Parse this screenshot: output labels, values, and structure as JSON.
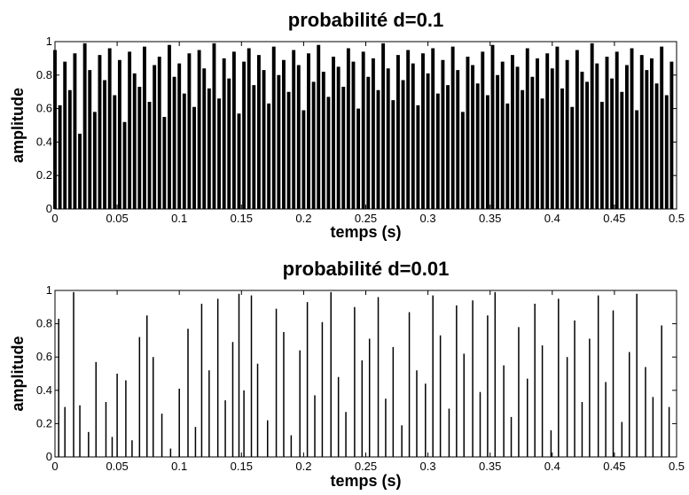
{
  "chart_data": [
    {
      "type": "stem",
      "title": "probabilité d=0.1",
      "xlabel": "temps (s)",
      "ylabel": "amplitude",
      "color": "#000000",
      "xlim": [
        0,
        0.5
      ],
      "ylim": [
        0,
        1
      ],
      "xticks": [
        0,
        0.05,
        0.1,
        0.15,
        0.2,
        0.25,
        0.3,
        0.35,
        0.4,
        0.45,
        0.5
      ],
      "yticks": [
        0,
        0.2,
        0.4,
        0.6,
        0.8,
        1
      ],
      "x": [
        0,
        0.004,
        0.008,
        0.012,
        0.016,
        0.02,
        0.024,
        0.028,
        0.032,
        0.036,
        0.04,
        0.044,
        0.048,
        0.052,
        0.056,
        0.06,
        0.064,
        0.068,
        0.072,
        0.076,
        0.08,
        0.084,
        0.088,
        0.092,
        0.096,
        0.1,
        0.104,
        0.108,
        0.112,
        0.116,
        0.12,
        0.124,
        0.128,
        0.132,
        0.136,
        0.14,
        0.144,
        0.148,
        0.152,
        0.156,
        0.16,
        0.164,
        0.168,
        0.172,
        0.176,
        0.18,
        0.184,
        0.188,
        0.192,
        0.196,
        0.2,
        0.204,
        0.208,
        0.212,
        0.216,
        0.22,
        0.224,
        0.228,
        0.232,
        0.236,
        0.24,
        0.244,
        0.248,
        0.252,
        0.256,
        0.26,
        0.264,
        0.268,
        0.272,
        0.276,
        0.28,
        0.284,
        0.288,
        0.292,
        0.296,
        0.3,
        0.304,
        0.308,
        0.312,
        0.316,
        0.32,
        0.324,
        0.328,
        0.332,
        0.336,
        0.34,
        0.344,
        0.348,
        0.352,
        0.356,
        0.36,
        0.364,
        0.368,
        0.372,
        0.376,
        0.38,
        0.384,
        0.388,
        0.392,
        0.396,
        0.4,
        0.404,
        0.408,
        0.412,
        0.416,
        0.42,
        0.424,
        0.428,
        0.432,
        0.436,
        0.44,
        0.444,
        0.448,
        0.452,
        0.456,
        0.46,
        0.464,
        0.468,
        0.472,
        0.476,
        0.48,
        0.484,
        0.488,
        0.492,
        0.496
      ],
      "values": [
        0.95,
        0.62,
        0.88,
        0.71,
        0.93,
        0.45,
        0.99,
        0.83,
        0.58,
        0.92,
        0.77,
        0.96,
        0.68,
        0.89,
        0.52,
        0.94,
        0.81,
        0.73,
        0.97,
        0.64,
        0.86,
        0.91,
        0.55,
        0.98,
        0.79,
        0.87,
        0.69,
        0.93,
        0.61,
        0.95,
        0.84,
        0.72,
        0.99,
        0.66,
        0.9,
        0.78,
        0.94,
        0.57,
        0.88,
        0.96,
        0.74,
        0.92,
        0.83,
        0.63,
        0.97,
        0.8,
        0.89,
        0.7,
        0.95,
        0.86,
        0.59,
        0.93,
        0.76,
        0.98,
        0.82,
        0.67,
        0.91,
        0.85,
        0.73,
        0.96,
        0.88,
        0.6,
        0.94,
        0.79,
        0.9,
        0.71,
        0.99,
        0.84,
        0.65,
        0.92,
        0.77,
        0.95,
        0.87,
        0.62,
        0.93,
        0.81,
        0.96,
        0.69,
        0.89,
        0.74,
        0.97,
        0.83,
        0.58,
        0.91,
        0.86,
        0.75,
        0.94,
        0.68,
        0.98,
        0.8,
        0.88,
        0.63,
        0.92,
        0.85,
        0.71,
        0.96,
        0.79,
        0.9,
        0.66,
        0.93,
        0.84,
        0.97,
        0.72,
        0.89,
        0.61,
        0.95,
        0.82,
        0.76,
        0.99,
        0.87,
        0.64,
        0.91,
        0.78,
        0.94,
        0.7,
        0.86,
        0.96,
        0.59,
        0.92,
        0.83,
        0.9,
        0.75,
        0.97,
        0.68,
        0.88
      ]
    },
    {
      "type": "stem",
      "title": "probabilité d=0.01",
      "xlabel": "temps (s)",
      "ylabel": "amplitude",
      "color": "#000000",
      "xlim": [
        0,
        0.5
      ],
      "ylim": [
        0,
        1
      ],
      "xticks": [
        0,
        0.05,
        0.1,
        0.15,
        0.2,
        0.25,
        0.3,
        0.35,
        0.4,
        0.45,
        0.5
      ],
      "yticks": [
        0,
        0.2,
        0.4,
        0.6,
        0.8,
        1
      ],
      "x": [
        0.003,
        0.008,
        0.015,
        0.02,
        0.027,
        0.033,
        0.041,
        0.046,
        0.05,
        0.057,
        0.062,
        0.068,
        0.074,
        0.079,
        0.086,
        0.093,
        0.1,
        0.107,
        0.113,
        0.118,
        0.124,
        0.131,
        0.137,
        0.143,
        0.148,
        0.152,
        0.158,
        0.163,
        0.171,
        0.178,
        0.184,
        0.19,
        0.197,
        0.203,
        0.209,
        0.215,
        0.222,
        0.228,
        0.234,
        0.241,
        0.247,
        0.253,
        0.26,
        0.266,
        0.272,
        0.279,
        0.285,
        0.291,
        0.298,
        0.304,
        0.31,
        0.317,
        0.323,
        0.329,
        0.336,
        0.342,
        0.348,
        0.354,
        0.361,
        0.367,
        0.373,
        0.38,
        0.386,
        0.392,
        0.399,
        0.405,
        0.412,
        0.418,
        0.424,
        0.43,
        0.437,
        0.443,
        0.449,
        0.456,
        0.462,
        0.468,
        0.475,
        0.481,
        0.488,
        0.494
      ],
      "values": [
        0.83,
        0.3,
        0.99,
        0.31,
        0.15,
        0.57,
        0.33,
        0.12,
        0.5,
        0.46,
        0.1,
        0.72,
        0.85,
        0.6,
        0.26,
        0.05,
        0.41,
        0.77,
        0.18,
        0.92,
        0.52,
        0.95,
        0.34,
        0.69,
        0.98,
        0.4,
        0.97,
        0.56,
        0.22,
        0.89,
        0.75,
        0.13,
        0.64,
        0.93,
        0.37,
        0.81,
        0.99,
        0.48,
        0.27,
        0.9,
        0.58,
        0.71,
        0.96,
        0.35,
        0.66,
        0.19,
        0.87,
        0.52,
        0.44,
        0.97,
        0.73,
        0.29,
        0.91,
        0.62,
        0.94,
        0.39,
        0.85,
        0.99,
        0.55,
        0.24,
        0.78,
        0.47,
        0.92,
        0.67,
        0.16,
        0.95,
        0.6,
        0.82,
        0.33,
        0.71,
        0.97,
        0.45,
        0.88,
        0.21,
        0.63,
        0.98,
        0.54,
        0.36,
        0.79,
        0.3
      ]
    }
  ]
}
